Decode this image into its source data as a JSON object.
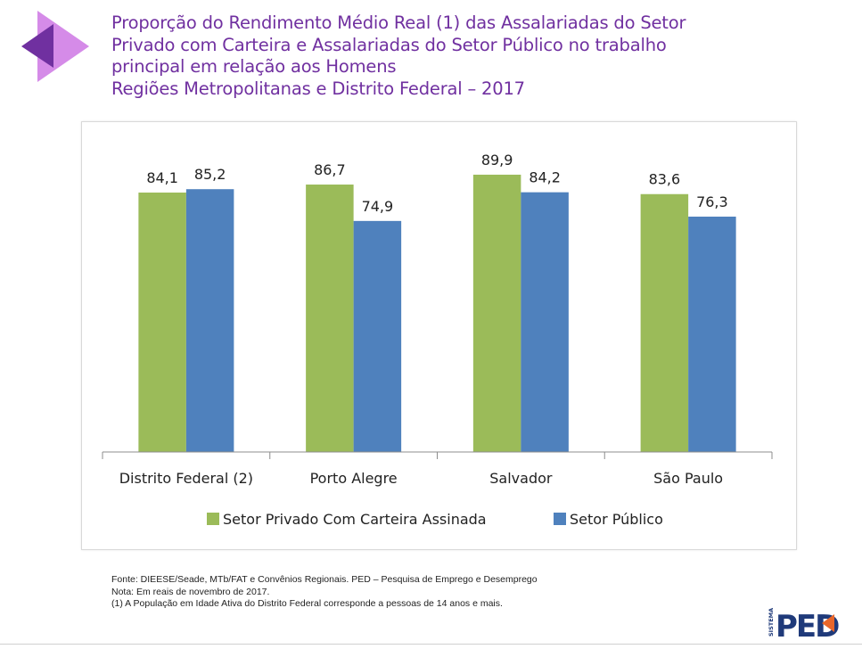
{
  "header": {
    "title_lines": [
      "Proporção do Rendimento Médio Real (1) das Assalariadas do Setor",
      "Privado com Carteira e Assalariadas do Setor Público no trabalho",
      "principal em relação aos Homens",
      "Regiões Metropolitanas e Distrito Federal – 2017"
    ]
  },
  "chart_data": {
    "type": "bar",
    "title": "Proporção do Rendimento Médio Real (1) das Assalariadas do Setor Privado com Carteira e Assalariadas do Setor Público no trabalho principal em relação aos Homens - Regiões Metropolitanas e Distrito Federal – 2017",
    "categories": [
      "Distrito Federal (2)",
      "Porto Alegre",
      "Salvador",
      "São Paulo"
    ],
    "series": [
      {
        "name": "Setor Privado Com Carteira Assinada",
        "color": "#9bbb59",
        "values": [
          84.1,
          86.7,
          89.9,
          83.6
        ],
        "labels": [
          "84,1",
          "86,7",
          "89,9",
          "83,6"
        ]
      },
      {
        "name": "Setor Público",
        "color": "#4f81bd",
        "values": [
          85.2,
          74.9,
          84.2,
          76.3
        ],
        "labels": [
          "85,2",
          "74,9",
          "84,2",
          "76,3"
        ]
      }
    ],
    "xlabel": "",
    "ylabel": "",
    "ylim": [
      0,
      100
    ],
    "grid": false,
    "legend_position": "bottom"
  },
  "footer": {
    "notes": [
      "Fonte: DIEESE/Seade, MTb/FAT e Convênios Regionais. PED – Pesquisa de Emprego e Desemprego",
      "Nota: Em reais de novembro de 2017.",
      "(1) A População em Idade Ativa do Distrito Federal corresponde a pessoas de 14 anos e mais."
    ],
    "logo_text": "PED",
    "logo_subtext": "SISTEMA"
  },
  "colors": {
    "title": "#7030a0",
    "logo_light": "#d58be8",
    "logo_dark": "#7030a0",
    "ped_blue": "#1f3a7a",
    "ped_orange": "#e8662a"
  }
}
